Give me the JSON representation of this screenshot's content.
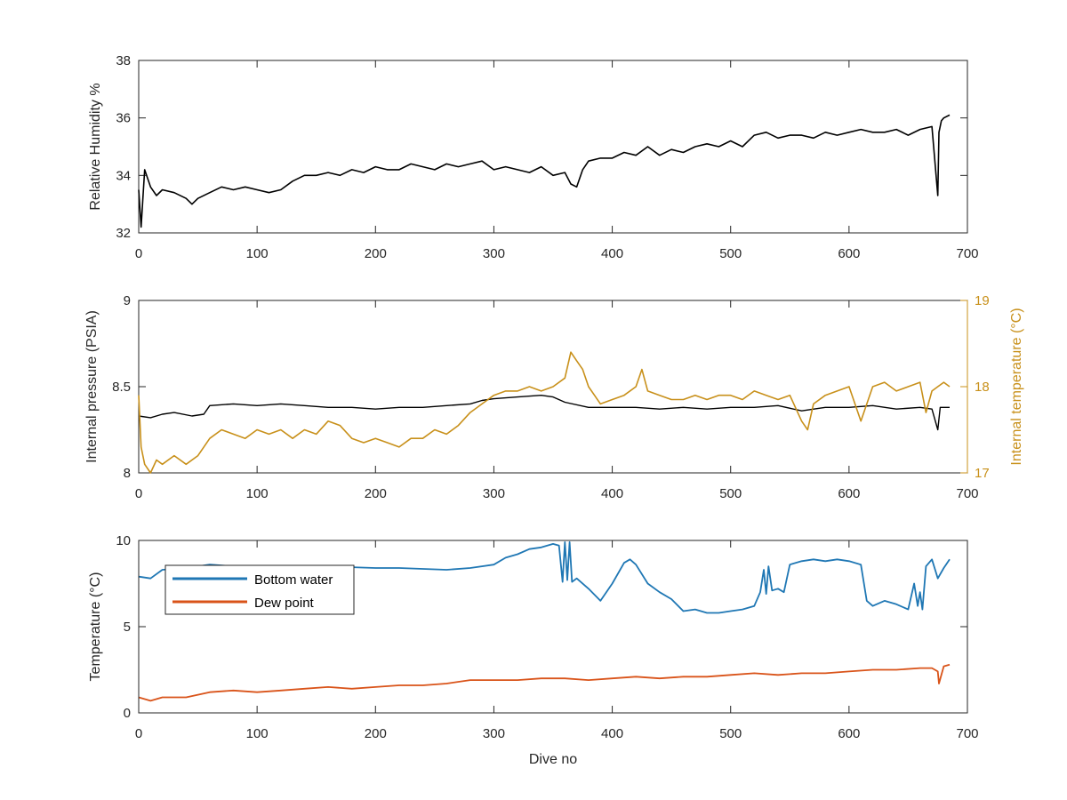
{
  "figure": {
    "xlabel": "Dive no"
  },
  "colors": {
    "axis": "#262626",
    "rh": "#000000",
    "pressure": "#000000",
    "internal_temp": "#C8901A",
    "bottom_water": "#1F77B4",
    "dew_point": "#D95319"
  },
  "chart_data": [
    {
      "type": "line",
      "ylabel": "Relative Humidity %",
      "xlim": [
        0,
        700
      ],
      "ylim": [
        32,
        38
      ],
      "xticks": [
        "0",
        "100",
        "200",
        "300",
        "400",
        "500",
        "600",
        "700"
      ],
      "yticks": [
        "32",
        "34",
        "36",
        "38"
      ],
      "series": [
        {
          "x": [
            0,
            2,
            5,
            10,
            15,
            20,
            30,
            40,
            45,
            50,
            60,
            70,
            80,
            90,
            100,
            110,
            120,
            130,
            140,
            150,
            160,
            170,
            180,
            190,
            200,
            210,
            220,
            230,
            240,
            250,
            260,
            270,
            280,
            290,
            300,
            310,
            320,
            330,
            340,
            350,
            360,
            365,
            370,
            375,
            380,
            390,
            400,
            410,
            420,
            430,
            440,
            450,
            460,
            470,
            480,
            490,
            500,
            510,
            520,
            530,
            540,
            550,
            560,
            570,
            580,
            590,
            600,
            610,
            620,
            630,
            640,
            650,
            660,
            670,
            675,
            676,
            678,
            680,
            685
          ],
          "y": [
            33.5,
            32.2,
            34.2,
            33.6,
            33.3,
            33.5,
            33.4,
            33.2,
            33.0,
            33.2,
            33.4,
            33.6,
            33.5,
            33.6,
            33.5,
            33.4,
            33.5,
            33.8,
            34.0,
            34.0,
            34.1,
            34.0,
            34.2,
            34.1,
            34.3,
            34.2,
            34.2,
            34.4,
            34.3,
            34.2,
            34.4,
            34.3,
            34.4,
            34.5,
            34.2,
            34.3,
            34.2,
            34.1,
            34.3,
            34.0,
            34.1,
            33.7,
            33.6,
            34.2,
            34.5,
            34.6,
            34.6,
            34.8,
            34.7,
            35.0,
            34.7,
            34.9,
            34.8,
            35.0,
            35.1,
            35.0,
            35.2,
            35.0,
            35.4,
            35.5,
            35.3,
            35.4,
            35.4,
            35.3,
            35.5,
            35.4,
            35.5,
            35.6,
            35.5,
            35.5,
            35.6,
            35.4,
            35.6,
            35.7,
            33.3,
            35.5,
            35.9,
            36.0,
            36.1
          ]
        }
      ]
    },
    {
      "type": "line",
      "ylabel": "Internal pressure (PSIA)",
      "y2label": "Internal temperature (°C)",
      "xlim": [
        0,
        700
      ],
      "ylim": [
        8,
        9
      ],
      "y2lim": [
        17,
        19
      ],
      "xticks": [
        "0",
        "100",
        "200",
        "300",
        "400",
        "500",
        "600",
        "700"
      ],
      "yticks": [
        "8",
        "8.5",
        "9"
      ],
      "y2ticks": [
        "17",
        "18",
        "19"
      ],
      "series": [
        {
          "axis": "left",
          "x": [
            0,
            10,
            20,
            30,
            45,
            55,
            60,
            80,
            100,
            120,
            140,
            160,
            180,
            200,
            220,
            240,
            260,
            280,
            290,
            300,
            320,
            340,
            350,
            360,
            380,
            400,
            420,
            440,
            460,
            480,
            500,
            520,
            540,
            560,
            580,
            600,
            620,
            640,
            660,
            670,
            675,
            677,
            680,
            685
          ],
          "y": [
            8.33,
            8.32,
            8.34,
            8.35,
            8.33,
            8.34,
            8.39,
            8.4,
            8.39,
            8.4,
            8.39,
            8.38,
            8.38,
            8.37,
            8.38,
            8.38,
            8.39,
            8.4,
            8.42,
            8.43,
            8.44,
            8.45,
            8.44,
            8.41,
            8.38,
            8.38,
            8.38,
            8.37,
            8.38,
            8.37,
            8.38,
            8.38,
            8.39,
            8.36,
            8.38,
            8.38,
            8.39,
            8.37,
            8.38,
            8.37,
            8.25,
            8.38,
            8.38,
            8.38
          ]
        },
        {
          "axis": "right",
          "x": [
            0,
            2,
            5,
            10,
            15,
            20,
            30,
            40,
            50,
            60,
            70,
            80,
            90,
            100,
            110,
            120,
            130,
            140,
            150,
            160,
            170,
            180,
            190,
            200,
            210,
            220,
            230,
            240,
            250,
            260,
            270,
            280,
            290,
            300,
            310,
            320,
            330,
            340,
            350,
            360,
            365,
            370,
            375,
            380,
            385,
            390,
            400,
            410,
            420,
            425,
            430,
            440,
            450,
            460,
            470,
            480,
            490,
            500,
            510,
            520,
            530,
            540,
            550,
            560,
            565,
            570,
            580,
            590,
            600,
            610,
            620,
            630,
            640,
            650,
            660,
            665,
            670,
            675,
            680,
            685
          ],
          "y": [
            17.9,
            17.3,
            17.1,
            17.0,
            17.15,
            17.1,
            17.2,
            17.1,
            17.2,
            17.4,
            17.5,
            17.45,
            17.4,
            17.5,
            17.45,
            17.5,
            17.4,
            17.5,
            17.45,
            17.6,
            17.55,
            17.4,
            17.35,
            17.4,
            17.35,
            17.3,
            17.4,
            17.4,
            17.5,
            17.45,
            17.55,
            17.7,
            17.8,
            17.9,
            17.95,
            17.95,
            18.0,
            17.95,
            18.0,
            18.1,
            18.4,
            18.3,
            18.2,
            18.0,
            17.9,
            17.8,
            17.85,
            17.9,
            18.0,
            18.2,
            17.95,
            17.9,
            17.85,
            17.85,
            17.9,
            17.85,
            17.9,
            17.9,
            17.85,
            17.95,
            17.9,
            17.85,
            17.9,
            17.6,
            17.5,
            17.8,
            17.9,
            17.95,
            18.0,
            17.6,
            18.0,
            18.05,
            17.95,
            18.0,
            18.05,
            17.7,
            17.95,
            18.0,
            18.05,
            18.0
          ]
        }
      ]
    },
    {
      "type": "line",
      "ylabel": "Temperature (°C)",
      "xlabel": "Dive no",
      "xlim": [
        0,
        700
      ],
      "ylim": [
        0,
        10
      ],
      "xticks": [
        "0",
        "100",
        "200",
        "300",
        "400",
        "500",
        "600",
        "700"
      ],
      "yticks": [
        "0",
        "5",
        "10"
      ],
      "legend": "top-left",
      "series": [
        {
          "name": "Bottom water",
          "x": [
            0,
            10,
            20,
            40,
            60,
            80,
            100,
            120,
            140,
            160,
            180,
            200,
            220,
            240,
            260,
            280,
            300,
            310,
            320,
            330,
            340,
            350,
            355,
            358,
            360,
            362,
            364,
            366,
            370,
            380,
            390,
            400,
            410,
            415,
            420,
            430,
            440,
            450,
            460,
            470,
            480,
            490,
            500,
            510,
            520,
            525,
            528,
            530,
            532,
            535,
            540,
            545,
            550,
            560,
            570,
            580,
            590,
            600,
            610,
            615,
            620,
            630,
            640,
            650,
            655,
            658,
            660,
            662,
            665,
            670,
            675,
            680,
            685
          ],
          "y": [
            7.9,
            7.8,
            8.3,
            8.4,
            8.6,
            8.5,
            8.5,
            8.4,
            8.45,
            8.5,
            8.45,
            8.4,
            8.4,
            8.35,
            8.3,
            8.4,
            8.6,
            9.0,
            9.2,
            9.5,
            9.6,
            9.8,
            9.7,
            7.6,
            9.9,
            7.7,
            9.9,
            7.6,
            7.8,
            7.2,
            6.5,
            7.5,
            8.7,
            8.9,
            8.6,
            7.5,
            7.0,
            6.6,
            5.9,
            6.0,
            5.8,
            5.8,
            5.9,
            6.0,
            6.2,
            7.0,
            8.3,
            6.9,
            8.5,
            7.1,
            7.2,
            7.0,
            8.6,
            8.8,
            8.9,
            8.8,
            8.9,
            8.8,
            8.6,
            6.5,
            6.2,
            6.5,
            6.3,
            6.0,
            7.5,
            6.2,
            7.0,
            6.0,
            8.5,
            8.9,
            7.8,
            8.4,
            8.9
          ]
        },
        {
          "name": "Dew point",
          "x": [
            0,
            10,
            20,
            40,
            60,
            80,
            100,
            120,
            140,
            160,
            180,
            200,
            220,
            240,
            260,
            280,
            300,
            320,
            340,
            360,
            380,
            400,
            420,
            440,
            460,
            480,
            500,
            520,
            540,
            560,
            580,
            600,
            620,
            640,
            660,
            670,
            675,
            676,
            680,
            685
          ],
          "y": [
            0.9,
            0.7,
            0.9,
            0.9,
            1.2,
            1.3,
            1.2,
            1.3,
            1.4,
            1.5,
            1.4,
            1.5,
            1.6,
            1.6,
            1.7,
            1.9,
            1.9,
            1.9,
            2.0,
            2.0,
            1.9,
            2.0,
            2.1,
            2.0,
            2.1,
            2.1,
            2.2,
            2.3,
            2.2,
            2.3,
            2.3,
            2.4,
            2.5,
            2.5,
            2.6,
            2.6,
            2.4,
            1.7,
            2.7,
            2.8
          ]
        }
      ]
    }
  ]
}
